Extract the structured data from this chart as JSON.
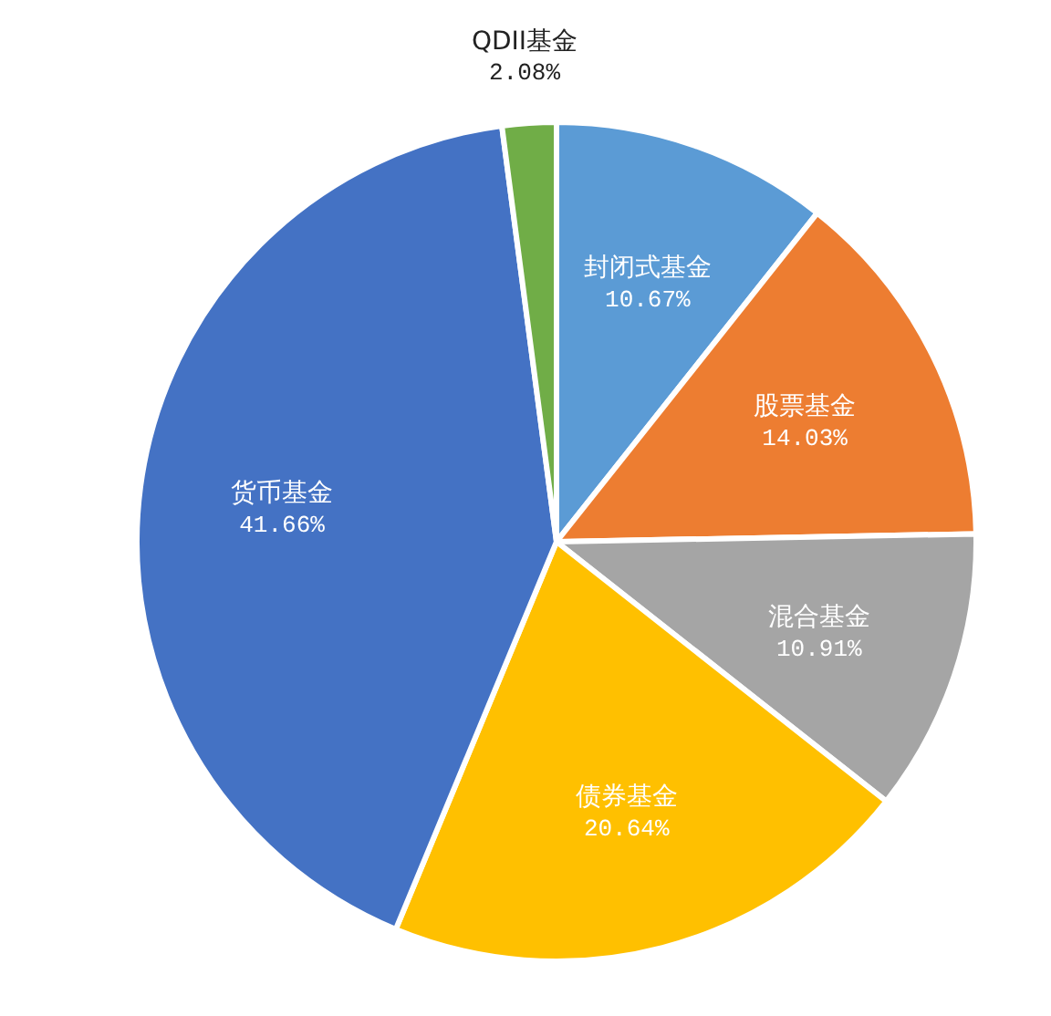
{
  "chart_data": {
    "type": "pie",
    "categories": [
      "封闭式基金",
      "股票基金",
      "混合基金",
      "债券基金",
      "货币基金",
      "QDII基金"
    ],
    "values": [
      10.67,
      14.03,
      10.91,
      20.64,
      41.66,
      2.08
    ],
    "colors": [
      "#5b9bd5",
      "#ed7d31",
      "#a5a5a5",
      "#ffc000",
      "#4472c4",
      "#70ad47"
    ],
    "value_labels": [
      "10.67%",
      "14.03%",
      "10.91%",
      "20.64%",
      "41.66%",
      "2.08%"
    ]
  }
}
